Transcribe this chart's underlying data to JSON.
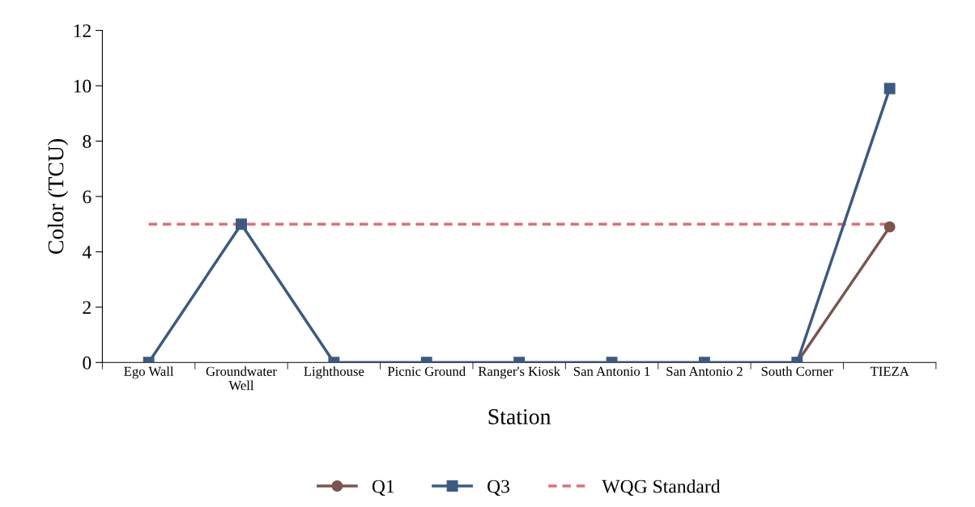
{
  "chart_data": {
    "type": "line",
    "xlabel": "Station",
    "ylabel": "Color (TCU)",
    "categories": [
      "Ego Wall",
      "Groundwater\nWell",
      "Lighthouse",
      "Picnic Ground",
      "Ranger's Kiosk",
      "San Antonio 1",
      "San Antonio 2",
      "South Corner",
      "TIEZA"
    ],
    "series": [
      {
        "name": "Q1",
        "color": "#7a5550",
        "marker": "circle",
        "values": [
          null,
          null,
          null,
          null,
          null,
          null,
          null,
          0,
          4.9
        ]
      },
      {
        "name": "Q3",
        "color": "#3d5a80",
        "marker": "square",
        "values": [
          0,
          5,
          0,
          0,
          0,
          0,
          0,
          0,
          9.9
        ]
      },
      {
        "name": "WQG Standard",
        "color": "#d9727a",
        "marker": "none",
        "line_style": "dashed",
        "values": [
          5,
          5,
          5,
          5,
          5,
          5,
          5,
          5,
          5
        ]
      }
    ],
    "ylim": [
      0,
      12
    ],
    "yticks": [
      0,
      2,
      4,
      6,
      8,
      10,
      12
    ],
    "grid": false,
    "legend": "bottom"
  }
}
